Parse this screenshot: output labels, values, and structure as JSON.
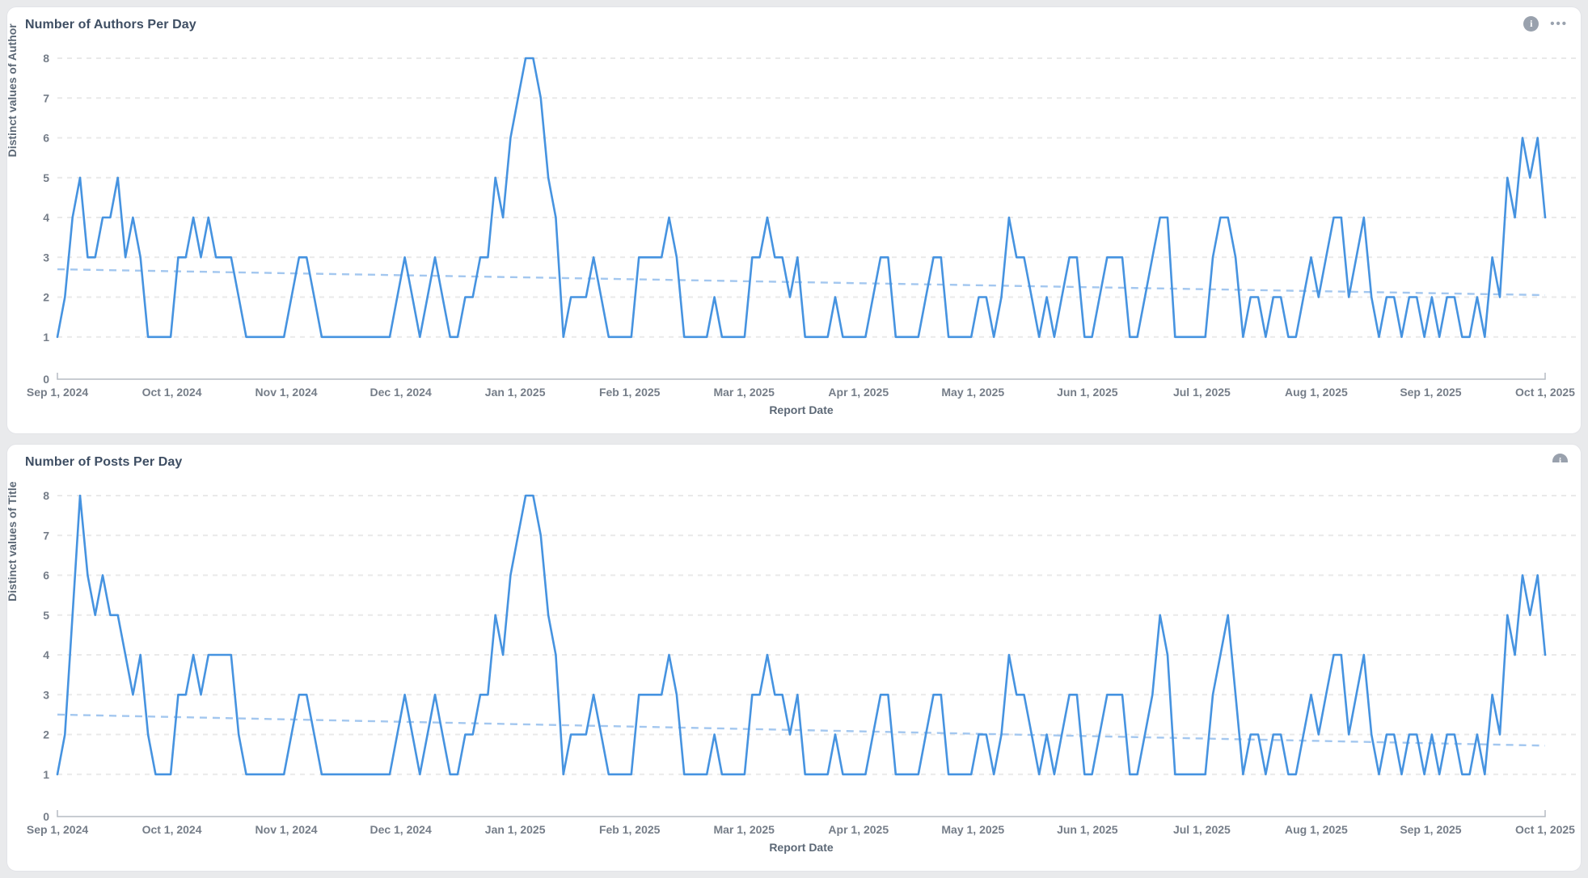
{
  "page": {
    "background": "#e9eaec"
  },
  "colors": {
    "series_line": "#4693e0",
    "trend_line": "#a3c7ef",
    "gridline": "#e9e9e9",
    "axis_line": "#b6bcc4",
    "tick_text": "#757d88",
    "title_text": "#3e4e63",
    "axis_title_text": "#5c6876",
    "icon_gray": "#99a1ad",
    "card_bg": "#ffffff"
  },
  "icons": {
    "info": "i",
    "menu": "•••"
  },
  "cards": [
    {
      "title": "Number of Authors Per Day",
      "y_axis_title": "Distinct values of Author",
      "x_axis_title": "Report Date"
    },
    {
      "title": "Number of Posts Per Day",
      "y_axis_title": "Distinct values of Title",
      "x_axis_title": "Report Date"
    }
  ],
  "chart_data": [
    {
      "type": "line",
      "title": "Number of Authors Per Day",
      "xlabel": "Report Date",
      "ylabel": "Distinct values of Author",
      "x_start": "Sep 1, 2024",
      "x_end": "Oct 1, 2025",
      "sample_interval_days": 2,
      "categories": [
        "Sep 1, 2024",
        "Oct 1, 2024",
        "Nov 1, 2024",
        "Dec 1, 2024",
        "Jan 1, 2025",
        "Feb 1, 2025",
        "Mar 1, 2025",
        "Apr 1, 2025",
        "May 1, 2025",
        "Jun 1, 2025",
        "Jul 1, 2025",
        "Aug 1, 2025",
        "Sep 1, 2025",
        "Oct 1, 2025"
      ],
      "yticks": [
        8,
        7,
        6,
        5,
        4,
        3,
        2,
        1,
        0
      ],
      "ylim": [
        0,
        8
      ],
      "grid": "dashed-horizontal",
      "legend": "none",
      "series": [
        {
          "name": "Distinct values of Author",
          "values": [
            1,
            2,
            4,
            5,
            3,
            3,
            4,
            4,
            5,
            3,
            4,
            3,
            1,
            1,
            1,
            1,
            3,
            3,
            4,
            3,
            4,
            3,
            3,
            3,
            2,
            1,
            1,
            1,
            1,
            1,
            1,
            2,
            3,
            3,
            2,
            1,
            1,
            1,
            1,
            1,
            1,
            1,
            1,
            1,
            1,
            2,
            3,
            2,
            1,
            2,
            3,
            2,
            1,
            1,
            2,
            2,
            3,
            3,
            5,
            4,
            6,
            7,
            8,
            8,
            7,
            5,
            4,
            1,
            2,
            2,
            2,
            3,
            2,
            1,
            1,
            1,
            1,
            3,
            3,
            3,
            3,
            4,
            3,
            1,
            1,
            1,
            1,
            2,
            1,
            1,
            1,
            1,
            3,
            3,
            4,
            3,
            3,
            2,
            3,
            1,
            1,
            1,
            1,
            2,
            1,
            1,
            1,
            1,
            2,
            3,
            3,
            1,
            1,
            1,
            1,
            2,
            3,
            3,
            1,
            1,
            1,
            1,
            2,
            2,
            1,
            2,
            4,
            3,
            3,
            2,
            1,
            2,
            1,
            2,
            3,
            3,
            1,
            1,
            2,
            3,
            3,
            3,
            1,
            1,
            2,
            3,
            4,
            4,
            1,
            1,
            1,
            1,
            1,
            3,
            4,
            4,
            3,
            1,
            2,
            2,
            1,
            2,
            2,
            1,
            1,
            2,
            3,
            2,
            3,
            4,
            4,
            2,
            3,
            4,
            2,
            1,
            2,
            2,
            1,
            2,
            2,
            1,
            2,
            1,
            2,
            2,
            1,
            1,
            2,
            1,
            3,
            2,
            5,
            4,
            6,
            5,
            6,
            4
          ]
        }
      ],
      "trend": {
        "name": "trend-line",
        "style": "dashed",
        "start_value": 2.7,
        "end_value": 2.05
      }
    },
    {
      "type": "line",
      "title": "Number of Posts Per Day",
      "xlabel": "Report Date",
      "ylabel": "Distinct values of Title",
      "x_start": "Sep 1, 2024",
      "x_end": "Oct 1, 2025",
      "sample_interval_days": 2,
      "categories": [
        "Sep 1, 2024",
        "Oct 1, 2024",
        "Nov 1, 2024",
        "Dec 1, 2024",
        "Jan 1, 2025",
        "Feb 1, 2025",
        "Mar 1, 2025",
        "Apr 1, 2025",
        "May 1, 2025",
        "Jun 1, 2025",
        "Jul 1, 2025",
        "Aug 1, 2025",
        "Sep 1, 2025",
        "Oct 1, 2025"
      ],
      "yticks": [
        8,
        7,
        6,
        5,
        4,
        3,
        2,
        1,
        0
      ],
      "ylim": [
        0,
        8
      ],
      "grid": "dashed-horizontal",
      "legend": "none",
      "series": [
        {
          "name": "Distinct values of Title",
          "values": [
            1,
            2,
            5,
            8,
            6,
            5,
            6,
            5,
            5,
            4,
            3,
            4,
            2,
            1,
            1,
            1,
            3,
            3,
            4,
            3,
            4,
            4,
            4,
            4,
            2,
            1,
            1,
            1,
            1,
            1,
            1,
            2,
            3,
            3,
            2,
            1,
            1,
            1,
            1,
            1,
            1,
            1,
            1,
            1,
            1,
            2,
            3,
            2,
            1,
            2,
            3,
            2,
            1,
            1,
            2,
            2,
            3,
            3,
            5,
            4,
            6,
            7,
            8,
            8,
            7,
            5,
            4,
            1,
            2,
            2,
            2,
            3,
            2,
            1,
            1,
            1,
            1,
            3,
            3,
            3,
            3,
            4,
            3,
            1,
            1,
            1,
            1,
            2,
            1,
            1,
            1,
            1,
            3,
            3,
            4,
            3,
            3,
            2,
            3,
            1,
            1,
            1,
            1,
            2,
            1,
            1,
            1,
            1,
            2,
            3,
            3,
            1,
            1,
            1,
            1,
            2,
            3,
            3,
            1,
            1,
            1,
            1,
            2,
            2,
            1,
            2,
            4,
            3,
            3,
            2,
            1,
            2,
            1,
            2,
            3,
            3,
            1,
            1,
            2,
            3,
            3,
            3,
            1,
            1,
            2,
            3,
            5,
            4,
            1,
            1,
            1,
            1,
            1,
            3,
            4,
            5,
            3,
            1,
            2,
            2,
            1,
            2,
            2,
            1,
            1,
            2,
            3,
            2,
            3,
            4,
            4,
            2,
            3,
            4,
            2,
            1,
            2,
            2,
            1,
            2,
            2,
            1,
            2,
            1,
            2,
            2,
            1,
            1,
            2,
            1,
            3,
            2,
            5,
            4,
            6,
            5,
            6,
            4
          ]
        }
      ],
      "trend": {
        "name": "trend-line",
        "style": "dashed",
        "start_value": 2.5,
        "end_value": 1.72
      }
    }
  ]
}
